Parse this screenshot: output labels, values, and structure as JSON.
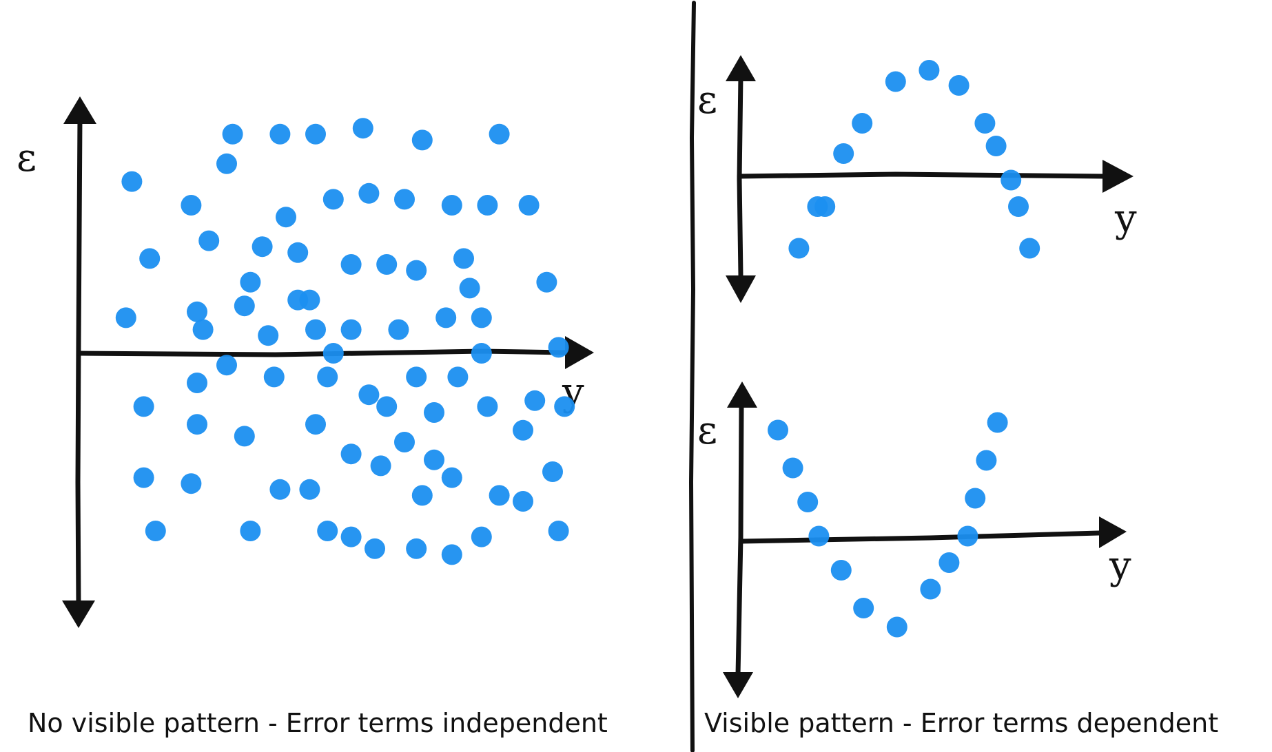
{
  "colors": {
    "point": "#1b8ff0",
    "ink": "#111111",
    "background": "#ffffff"
  },
  "chart_data": [
    {
      "type": "scatter",
      "title": "",
      "caption": "No visible pattern - Error terms independent",
      "xlabel": "y",
      "ylabel": "ε",
      "axes_ticks": false,
      "grid": false,
      "pattern": "none",
      "points": [
        [
          0.9,
          2.9
        ],
        [
          2.6,
          3.7
        ],
        [
          2.5,
          3.2
        ],
        [
          3.4,
          3.7
        ],
        [
          4.0,
          3.7
        ],
        [
          4.8,
          3.8
        ],
        [
          5.8,
          3.6
        ],
        [
          7.1,
          3.7
        ],
        [
          1.9,
          2.5
        ],
        [
          3.5,
          2.3
        ],
        [
          4.3,
          2.6
        ],
        [
          4.9,
          2.7
        ],
        [
          5.5,
          2.6
        ],
        [
          6.3,
          2.5
        ],
        [
          6.9,
          2.5
        ],
        [
          7.6,
          2.5
        ],
        [
          1.2,
          1.6
        ],
        [
          2.2,
          1.9
        ],
        [
          3.1,
          1.8
        ],
        [
          3.7,
          1.7
        ],
        [
          4.6,
          1.5
        ],
        [
          5.2,
          1.5
        ],
        [
          5.7,
          1.4
        ],
        [
          6.5,
          1.6
        ],
        [
          2.9,
          1.2
        ],
        [
          3.9,
          0.9
        ],
        [
          6.6,
          1.1
        ],
        [
          7.9,
          1.2
        ],
        [
          0.8,
          0.6
        ],
        [
          2.0,
          0.7
        ],
        [
          2.8,
          0.8
        ],
        [
          3.7,
          0.9
        ],
        [
          4.0,
          0.4
        ],
        [
          4.6,
          0.4
        ],
        [
          5.4,
          0.4
        ],
        [
          6.2,
          0.6
        ],
        [
          6.8,
          0.6
        ],
        [
          2.1,
          0.4
        ],
        [
          3.2,
          0.3
        ],
        [
          4.3,
          0.0
        ],
        [
          6.8,
          -0.0
        ],
        [
          8.1,
          0.1
        ],
        [
          2.5,
          -0.2
        ],
        [
          2.0,
          -0.5
        ],
        [
          3.3,
          -0.4
        ],
        [
          4.2,
          -0.4
        ],
        [
          4.9,
          -0.7
        ],
        [
          5.7,
          -0.4
        ],
        [
          6.4,
          -0.4
        ],
        [
          1.1,
          -0.9
        ],
        [
          2.0,
          -1.2
        ],
        [
          2.8,
          -1.4
        ],
        [
          4.0,
          -1.2
        ],
        [
          5.2,
          -0.9
        ],
        [
          6.0,
          -1.0
        ],
        [
          6.9,
          -0.9
        ],
        [
          7.7,
          -0.8
        ],
        [
          8.2,
          -0.9
        ],
        [
          7.5,
          -1.3
        ],
        [
          4.6,
          -1.7
        ],
        [
          5.5,
          -1.5
        ],
        [
          6.0,
          -1.8
        ],
        [
          6.3,
          -2.1
        ],
        [
          1.1,
          -2.1
        ],
        [
          1.9,
          -2.2
        ],
        [
          3.4,
          -2.3
        ],
        [
          3.9,
          -2.3
        ],
        [
          5.1,
          -1.9
        ],
        [
          5.8,
          -2.4
        ],
        [
          7.1,
          -2.4
        ],
        [
          7.5,
          -2.5
        ],
        [
          8.0,
          -2.0
        ],
        [
          1.3,
          -3.0
        ],
        [
          2.9,
          -3.0
        ],
        [
          4.2,
          -3.0
        ],
        [
          4.6,
          -3.1
        ],
        [
          5.0,
          -3.3
        ],
        [
          5.7,
          -3.3
        ],
        [
          6.3,
          -3.4
        ],
        [
          6.8,
          -3.1
        ],
        [
          8.1,
          -3.0
        ]
      ]
    },
    {
      "type": "scatter",
      "title": "",
      "xlabel": "y",
      "ylabel": "ε",
      "axes_ticks": false,
      "grid": false,
      "pattern": "sinusoidal",
      "points": [
        [
          1.6,
          -1.9
        ],
        [
          2.1,
          -0.8
        ],
        [
          2.3,
          -0.8
        ],
        [
          2.8,
          0.6
        ],
        [
          3.3,
          1.4
        ],
        [
          4.2,
          2.5
        ],
        [
          5.1,
          2.8
        ],
        [
          5.9,
          2.4
        ],
        [
          6.6,
          1.4
        ],
        [
          6.9,
          0.8
        ],
        [
          7.3,
          -0.1
        ],
        [
          7.5,
          -0.8
        ],
        [
          7.8,
          -1.9
        ]
      ]
    },
    {
      "type": "scatter",
      "title": "",
      "caption": "Visible pattern - Error terms dependent",
      "xlabel": "y",
      "ylabel": "ε",
      "axes_ticks": false,
      "grid": false,
      "pattern": "sinusoidal",
      "points": [
        [
          1.0,
          2.9
        ],
        [
          1.4,
          1.9
        ],
        [
          1.8,
          1.0
        ],
        [
          2.1,
          0.1
        ],
        [
          2.7,
          -0.8
        ],
        [
          3.3,
          -1.8
        ],
        [
          4.2,
          -2.3
        ],
        [
          5.1,
          -1.3
        ],
        [
          5.6,
          -0.6
        ],
        [
          6.1,
          0.1
        ],
        [
          6.3,
          1.1
        ],
        [
          6.6,
          2.1
        ],
        [
          6.9,
          3.1
        ]
      ]
    }
  ]
}
